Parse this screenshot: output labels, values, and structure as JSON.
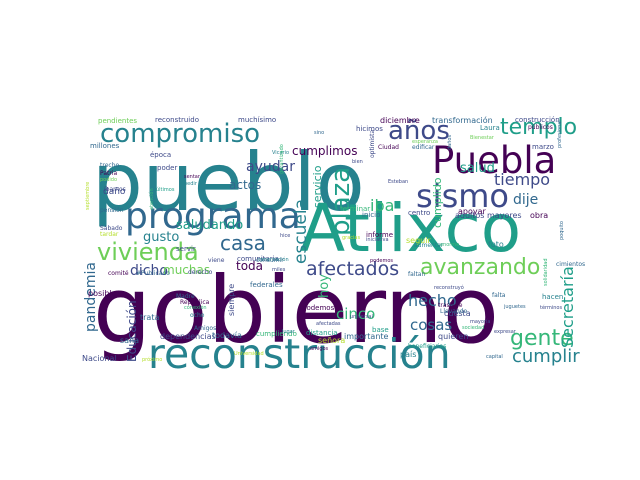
{
  "palette": {
    "dark_purple": "#440154",
    "indigo": "#3e4a89",
    "blue": "#31688e",
    "teal": "#26828e",
    "sea_green": "#1f9e89",
    "green": "#35b779",
    "light_green": "#6ece58",
    "yellow_green": "#b5de2b",
    "yellow": "#fde725"
  },
  "words": [
    {
      "text": "gobierno",
      "color": "dark_purple"
    },
    {
      "text": "pueblo",
      "color": "teal"
    },
    {
      "text": "Atlixco",
      "color": "sea_green"
    },
    {
      "text": "reconstrucción",
      "color": "teal"
    },
    {
      "text": "Puebla",
      "color": "dark_purple"
    },
    {
      "text": "programa",
      "color": "blue"
    },
    {
      "text": "sismo",
      "color": "indigo"
    },
    {
      "text": "compromiso",
      "color": "teal"
    },
    {
      "text": "años",
      "color": "indigo"
    },
    {
      "text": "vivienda",
      "color": "light_green"
    },
    {
      "text": "plaza",
      "color": "sea_green"
    },
    {
      "text": "templo",
      "color": "sea_green"
    },
    {
      "text": "avanzando",
      "color": "light_green"
    },
    {
      "text": "gente",
      "color": "green"
    },
    {
      "text": "afectados",
      "color": "indigo"
    },
    {
      "text": "escuela",
      "color": "teal"
    },
    {
      "text": "casa",
      "color": "blue"
    },
    {
      "text": "cumplir",
      "color": "teal"
    },
    {
      "text": "Secretaría",
      "color": "sea_green"
    },
    {
      "text": "tiempo",
      "color": "indigo"
    },
    {
      "text": "dicho",
      "color": "indigo"
    },
    {
      "text": "pandemia",
      "color": "blue"
    },
    {
      "text": "salud",
      "color": "sea_green"
    },
    {
      "text": "hecho",
      "color": "blue"
    },
    {
      "text": "cosas",
      "color": "blue"
    },
    {
      "text": "cinco",
      "color": "green"
    },
    {
      "text": "Educación",
      "color": "indigo"
    },
    {
      "text": "cumplimos",
      "color": "dark_purple"
    },
    {
      "text": "ayudar",
      "color": "indigo"
    },
    {
      "text": "iba",
      "color": "green"
    },
    {
      "text": "dije",
      "color": "blue"
    },
    {
      "text": "saludando",
      "color": "sea_green"
    },
    {
      "text": "gusto",
      "color": "teal"
    },
    {
      "text": "muchas",
      "color": "light_green"
    },
    {
      "text": "actos",
      "color": "blue"
    },
    {
      "text": "toda",
      "color": "dark_purple"
    },
    {
      "text": "hoy",
      "color": "green"
    },
    {
      "text": "servicio",
      "color": "sea_green"
    },
    {
      "text": "cumplido",
      "color": "green"
    },
    {
      "text": "diciembre",
      "color": "dark_purple"
    },
    {
      "text": "transformación",
      "color": "blue"
    },
    {
      "text": "construcción",
      "color": "indigo"
    },
    {
      "text": "pendientes",
      "color": "light_green"
    },
    {
      "text": "reconstruido",
      "color": "indigo"
    },
    {
      "text": "muchísimo",
      "color": "indigo"
    },
    {
      "text": "Laura",
      "color": "teal"
    },
    {
      "text": "hicimos",
      "color": "indigo"
    },
    {
      "text": "millones",
      "color": "blue"
    },
    {
      "text": "daño",
      "color": "indigo"
    },
    {
      "text": "posible",
      "color": "dark_purple"
    },
    {
      "text": "Nacional",
      "color": "indigo"
    },
    {
      "text": "sana",
      "color": "blue"
    },
    {
      "text": "trata",
      "color": "blue"
    },
    {
      "text": "dependencias",
      "color": "indigo"
    },
    {
      "text": "todavía",
      "color": "blue"
    },
    {
      "text": "cumpliendo",
      "color": "green"
    },
    {
      "text": "señora",
      "color": "yellow_green"
    },
    {
      "text": "importante",
      "color": "blue"
    },
    {
      "text": "país",
      "color": "teal"
    },
    {
      "text": "quieren",
      "color": "indigo"
    },
    {
      "text": "comunitaria",
      "color": "indigo"
    },
    {
      "text": "federales",
      "color": "blue"
    },
    {
      "text": "informe",
      "color": "dark_purple"
    },
    {
      "text": "seguir",
      "color": "yellow_green"
    },
    {
      "text": "apoyar",
      "color": "dark_purple"
    },
    {
      "text": "adultos mayores",
      "color": "indigo"
    },
    {
      "text": "obra",
      "color": "dark_purple"
    },
    {
      "text": "centro",
      "color": "indigo"
    },
    {
      "text": "inicio",
      "color": "blue"
    },
    {
      "text": "foto",
      "color": "teal"
    },
    {
      "text": "falta",
      "color": "blue"
    },
    {
      "text": "siempre",
      "color": "indigo"
    },
    {
      "text": "cuesta",
      "color": "indigo"
    },
    {
      "text": "podemos",
      "color": "dark_purple"
    },
    {
      "text": "época",
      "color": "indigo"
    },
    {
      "text": "poder",
      "color": "indigo"
    },
    {
      "text": "servir",
      "color": "indigo"
    },
    {
      "text": "hacen",
      "color": "teal"
    },
    {
      "text": "Ciudad",
      "color": "dark_purple"
    },
    {
      "text": "edificar",
      "color": "blue"
    },
    {
      "text": "marzo",
      "color": "indigo"
    },
    {
      "text": "viene",
      "color": "indigo"
    },
    {
      "text": "terminar",
      "color": "green"
    },
    {
      "text": "distancia",
      "color": "sea_green"
    },
    {
      "text": "base",
      "color": "sea_green"
    },
    {
      "text": "optimista",
      "color": "indigo"
    },
    {
      "text": "consumir",
      "color": "blue"
    },
    {
      "text": "derecho",
      "color": "indigo"
    },
    {
      "text": "comité",
      "color": "dark_purple"
    },
    {
      "text": "#Publicado",
      "color": "blue"
    },
    {
      "text": "República",
      "color": "dark_purple"
    },
    {
      "text": "Amigos",
      "color": "blue"
    },
    {
      "text": "conexión",
      "color": "green"
    },
    {
      "text": "ocho",
      "color": "teal"
    },
    {
      "text": "trecho",
      "color": "blue"
    },
    {
      "text": "Patria",
      "color": "dark_purple"
    },
    {
      "text": "podido",
      "color": "light_green"
    },
    {
      "text": "íbamos",
      "color": "indigo"
    },
    {
      "text": "pensión",
      "color": "blue"
    },
    {
      "text": "Sábado",
      "color": "indigo"
    },
    {
      "text": "tardar",
      "color": "yellow_green"
    },
    {
      "text": "septiembre",
      "color": "yellow_green"
    },
    {
      "text": "Madre",
      "color": "blue"
    },
    {
      "text": "reconstruyó",
      "color": "indigo"
    },
    {
      "text": "traslade",
      "color": "dark_purple"
    },
    {
      "text": "Llevando",
      "color": "blue"
    },
    {
      "text": "mayoría",
      "color": "indigo"
    },
    {
      "text": "sociedad",
      "color": "green"
    },
    {
      "text": "juguetes",
      "color": "blue"
    },
    {
      "text": "términos",
      "color": "indigo"
    },
    {
      "text": "cimientos",
      "color": "blue"
    },
    {
      "text": "beneficiarias",
      "color": "sea_green"
    },
    {
      "text": "iniciativa",
      "color": "indigo"
    },
    {
      "text": "faltan",
      "color": "blue"
    },
    {
      "text": "Esteban",
      "color": "indigo"
    },
    {
      "text": "capital",
      "color": "blue"
    },
    {
      "text": "próximo",
      "color": "yellow_green"
    },
    {
      "text": "aumentar",
      "color": "teal"
    },
    {
      "text": "enorme",
      "color": "green"
    },
    {
      "text": "expresar",
      "color": "indigo"
    },
    {
      "text": "públicos",
      "color": "dark_purple"
    },
    {
      "text": "Bienestar",
      "color": "light_green"
    },
    {
      "text": "cimentación",
      "color": "teal"
    },
    {
      "text": "universal",
      "color": "indigo"
    },
    {
      "text": "Vicario",
      "color": "teal"
    },
    {
      "text": "garantizado",
      "color": "green"
    },
    {
      "text": "atención",
      "color": "green"
    },
    {
      "text": "sentar",
      "color": "dark_purple"
    },
    {
      "text": "pedir",
      "color": "teal"
    },
    {
      "text": "últimos",
      "color": "sea_green"
    },
    {
      "text": "amigos",
      "color": "dark_purple"
    },
    {
      "text": "lugar",
      "color": "teal"
    },
    {
      "text": "Universidad",
      "color": "yellow_green"
    },
    {
      "text": "bien",
      "color": "indigo"
    },
    {
      "text": "sino",
      "color": "blue"
    },
    {
      "text": "miles",
      "color": "indigo"
    },
    {
      "text": "hice",
      "color": "indigo"
    },
    {
      "text": "podemos",
      "color": "dark_purple"
    },
    {
      "text": "gracias",
      "color": "yellow_green"
    },
    {
      "text": "afectadas",
      "color": "indigo"
    },
    {
      "text": "daños",
      "color": "blue"
    },
    {
      "text": "esperanza",
      "color": "light_green"
    },
    {
      "text": "profesional",
      "color": "blue"
    },
    {
      "text": "solidaridad",
      "color": "green"
    },
    {
      "text": "poquito",
      "color": "blue"
    }
  ]
}
